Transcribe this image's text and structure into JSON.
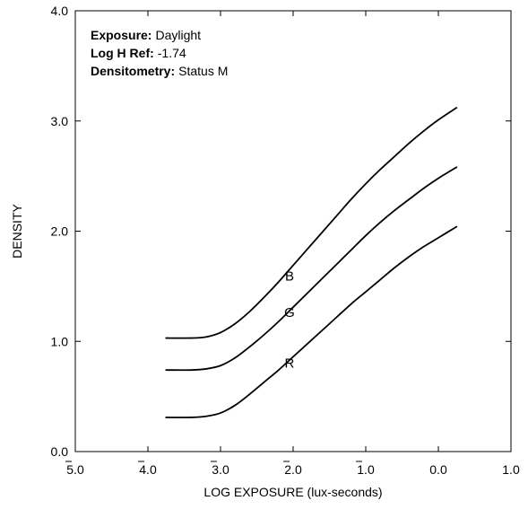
{
  "chart_data": {
    "type": "line",
    "title": "",
    "xlabel": "LOG EXPOSURE (lux-seconds)",
    "ylabel": "DENSITY",
    "xlim": [
      -5.0,
      1.0
    ],
    "ylim": [
      0.0,
      4.0
    ],
    "x_ticks": [
      {
        "value": -5.0,
        "label": "5.0",
        "bar": true
      },
      {
        "value": -4.0,
        "label": "4.0",
        "bar": true
      },
      {
        "value": -3.0,
        "label": "3.0",
        "bar": true
      },
      {
        "value": -2.0,
        "label": "2.0",
        "bar": true
      },
      {
        "value": -1.0,
        "label": "1.0",
        "bar": true
      },
      {
        "value": 0.0,
        "label": "0.0",
        "bar": false
      },
      {
        "value": 1.0,
        "label": "1.0",
        "bar": false
      }
    ],
    "y_ticks": [
      {
        "value": 0.0,
        "label": "0.0"
      },
      {
        "value": 1.0,
        "label": "1.0"
      },
      {
        "value": 2.0,
        "label": "2.0"
      },
      {
        "value": 3.0,
        "label": "3.0"
      },
      {
        "value": 4.0,
        "label": "4.0"
      }
    ],
    "grid": false,
    "annotations": [
      {
        "key": "Exposure:",
        "value": "Daylight"
      },
      {
        "key": "Log H Ref:",
        "value": "-1.74"
      },
      {
        "key": "Densitometry:",
        "value": "Status M"
      }
    ],
    "series": [
      {
        "name": "B",
        "label_at": [
          -2.05,
          1.55
        ],
        "x": [
          -3.75,
          -3.4,
          -3.2,
          -3.0,
          -2.8,
          -2.6,
          -2.4,
          -2.2,
          -2.0,
          -1.8,
          -1.6,
          -1.4,
          -1.2,
          -1.0,
          -0.8,
          -0.6,
          -0.4,
          -0.2,
          0.0,
          0.25
        ],
        "y": [
          1.03,
          1.03,
          1.04,
          1.08,
          1.16,
          1.27,
          1.4,
          1.54,
          1.69,
          1.84,
          1.99,
          2.14,
          2.29,
          2.43,
          2.56,
          2.68,
          2.8,
          2.91,
          3.01,
          3.12
        ]
      },
      {
        "name": "G",
        "label_at": [
          -2.05,
          1.22
        ],
        "x": [
          -3.75,
          -3.4,
          -3.2,
          -3.0,
          -2.8,
          -2.6,
          -2.4,
          -2.2,
          -2.0,
          -1.8,
          -1.6,
          -1.4,
          -1.2,
          -1.0,
          -0.8,
          -0.6,
          -0.4,
          -0.2,
          0.0,
          0.25
        ],
        "y": [
          0.74,
          0.74,
          0.75,
          0.78,
          0.85,
          0.95,
          1.06,
          1.18,
          1.31,
          1.44,
          1.57,
          1.7,
          1.83,
          1.96,
          2.08,
          2.19,
          2.29,
          2.39,
          2.48,
          2.58
        ]
      },
      {
        "name": "R",
        "label_at": [
          -2.05,
          0.76
        ],
        "x": [
          -3.75,
          -3.4,
          -3.2,
          -3.0,
          -2.8,
          -2.6,
          -2.4,
          -2.2,
          -2.0,
          -1.8,
          -1.6,
          -1.4,
          -1.2,
          -1.0,
          -0.8,
          -0.6,
          -0.4,
          -0.2,
          0.0,
          0.25
        ],
        "y": [
          0.31,
          0.31,
          0.32,
          0.35,
          0.42,
          0.52,
          0.63,
          0.74,
          0.86,
          0.98,
          1.1,
          1.22,
          1.34,
          1.45,
          1.56,
          1.67,
          1.77,
          1.86,
          1.94,
          2.04
        ]
      }
    ]
  }
}
